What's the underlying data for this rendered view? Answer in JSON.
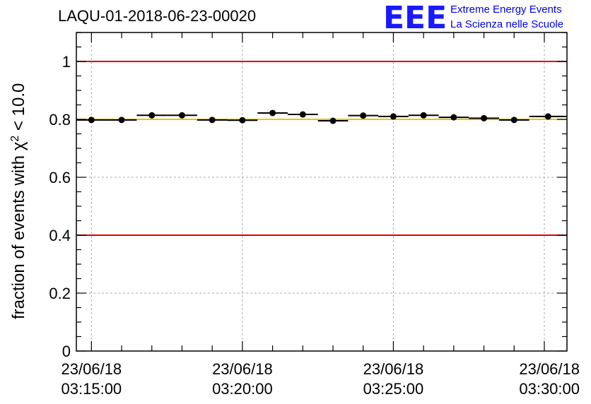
{
  "chart_data": {
    "type": "scatter",
    "title": "LAQU-01-2018-06-23-00020",
    "ylabel_prefix": "fraction of events with χ",
    "ylabel_sup": "2",
    "ylabel_suffix": " < 10.0",
    "xlabel": "",
    "ylim": [
      0,
      1.1
    ],
    "xlim_minutes": [
      -0.5,
      15.75
    ],
    "grid": true,
    "y_ticks": [
      {
        "value": 0,
        "label": "0"
      },
      {
        "value": 0.2,
        "label": "0.2"
      },
      {
        "value": 0.4,
        "label": "0.4"
      },
      {
        "value": 0.6,
        "label": "0.6"
      },
      {
        "value": 0.8,
        "label": "0.8"
      },
      {
        "value": 1,
        "label": "1"
      }
    ],
    "x_ticks": [
      {
        "minute": 0,
        "date": "23/06/18",
        "time": "03:15:00"
      },
      {
        "minute": 5,
        "date": "23/06/18",
        "time": "03:20:00"
      },
      {
        "minute": 10,
        "date": "23/06/18",
        "time": "03:25:00"
      },
      {
        "minute": 15,
        "date": "23/06/18",
        "time": "03:30:00"
      }
    ],
    "reference_lines": [
      {
        "name": "upper-limit-line",
        "value": 1.0,
        "color": "#e00000"
      },
      {
        "name": "lower-limit-line",
        "value": 0.4,
        "color": "#e00000"
      },
      {
        "name": "target-line",
        "value": 0.8,
        "color": "#f5c000"
      }
    ],
    "series": [
      {
        "name": "fraction",
        "x_start_minutes": [
          -0.5,
          0.5,
          1.5,
          2.5,
          3.5,
          4.5,
          5.5,
          6.5,
          7.5,
          8.5,
          9.5,
          10.5,
          11.5,
          12.5,
          13.5,
          14.5
        ],
        "x_end_minutes": [
          0.5,
          1.5,
          2.5,
          3.5,
          4.5,
          5.5,
          6.5,
          7.5,
          8.5,
          9.5,
          10.5,
          11.5,
          12.5,
          13.5,
          14.5,
          15.75
        ],
        "values": [
          0.798,
          0.798,
          0.814,
          0.814,
          0.798,
          0.797,
          0.822,
          0.817,
          0.795,
          0.813,
          0.81,
          0.814,
          0.807,
          0.804,
          0.798,
          0.81
        ]
      }
    ]
  },
  "logo": {
    "mark": "EEE",
    "line1": "Extreme Energy Events",
    "line2": "La Scienza nelle Scuole",
    "color": "#0000ee"
  }
}
